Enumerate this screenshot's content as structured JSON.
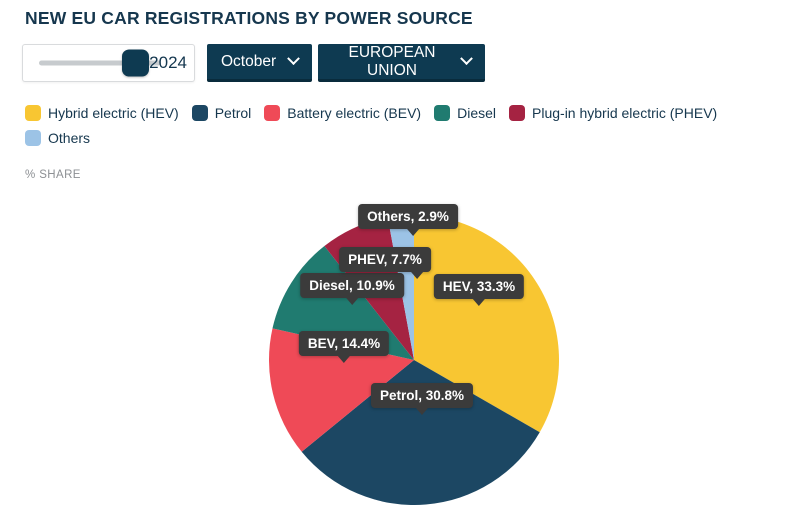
{
  "header": {
    "title": "NEW EU CAR REGISTRATIONS BY POWER SOURCE"
  },
  "controls": {
    "year_slider": {
      "value": "2024"
    },
    "month_dropdown": {
      "value": "October"
    },
    "region_dropdown": {
      "value": "EUROPEAN UNION"
    }
  },
  "axis_note": "% SHARE",
  "colors": {
    "accent_navy": "#0E3A51",
    "title_text": "#16374E",
    "callout_bg": "#3b3b3b"
  },
  "chart_data": {
    "type": "pie",
    "title": "NEW EU CAR REGISTRATIONS BY POWER SOURCE",
    "unit": "% share",
    "start_angle_deg": 0,
    "direction": "clockwise",
    "legend_position": "top",
    "slices": [
      {
        "name": "Hybrid electric (HEV)",
        "short": "HEV",
        "value": 33.3,
        "color": "#F8C632",
        "callout": "HEV, 33.3%"
      },
      {
        "name": "Petrol",
        "short": "Petrol",
        "value": 30.8,
        "color": "#1C4763",
        "callout": "Petrol, 30.8%"
      },
      {
        "name": "Battery electric (BEV)",
        "short": "BEV",
        "value": 14.4,
        "color": "#EF4A57",
        "callout": "BEV, 14.4%"
      },
      {
        "name": "Diesel",
        "short": "Diesel",
        "value": 10.9,
        "color": "#207B70",
        "callout": "Diesel, 10.9%"
      },
      {
        "name": "Plug-in hybrid electric (PHEV)",
        "short": "PHEV",
        "value": 7.7,
        "color": "#A52342",
        "callout": "PHEV, 7.7%"
      },
      {
        "name": "Others",
        "short": "Others",
        "value": 2.9,
        "color": "#9CC3E6",
        "callout": "Others, 2.9%"
      }
    ]
  }
}
